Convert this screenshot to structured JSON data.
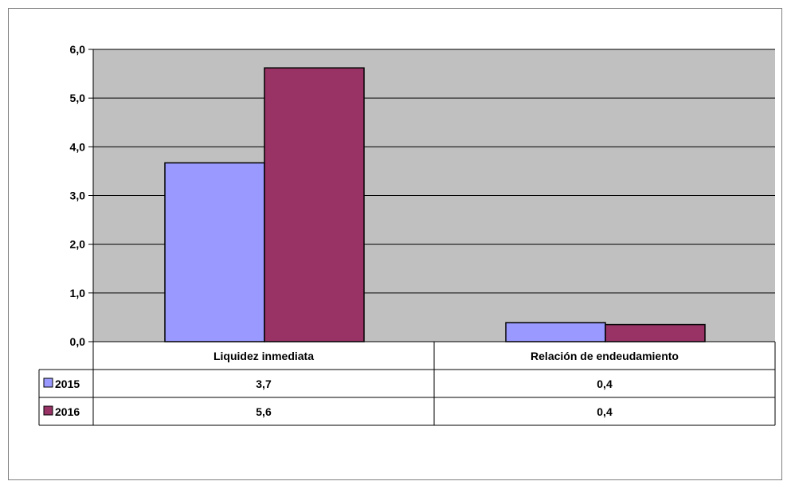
{
  "chart_data": {
    "type": "bar",
    "categories": [
      "Liquidez inmediata",
      "Relación de endeudamiento"
    ],
    "series": [
      {
        "name": "2015",
        "color": "#9999ff",
        "values": [
          3.67,
          0.39
        ],
        "labels": [
          "3,7",
          "0,4"
        ]
      },
      {
        "name": "2016",
        "color": "#993366",
        "values": [
          5.62,
          0.35
        ],
        "labels": [
          "5,6",
          "0,4"
        ]
      }
    ],
    "ylim": [
      0,
      6
    ],
    "y_ticks": [
      0,
      1,
      2,
      3,
      4,
      5,
      6
    ],
    "y_tick_labels": [
      "0,0",
      "1,0",
      "2,0",
      "3,0",
      "4,0",
      "5,0",
      "6,0"
    ],
    "grid": true,
    "plot_background": "#c0c0c0",
    "legend": "data-table",
    "title": "",
    "xlabel": "",
    "ylabel": ""
  }
}
